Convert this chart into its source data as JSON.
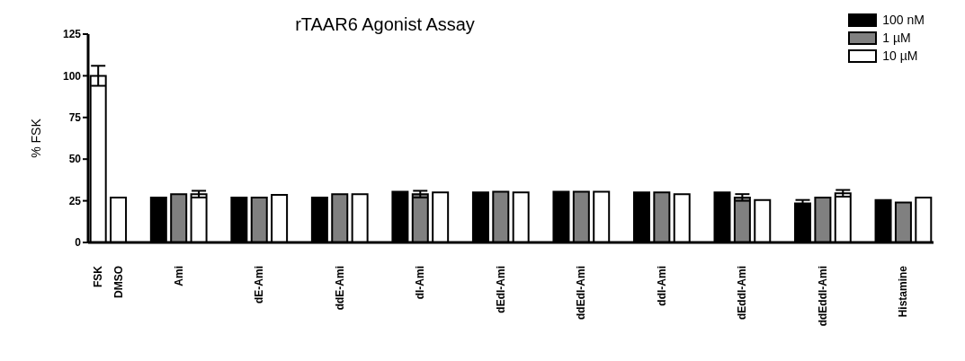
{
  "chart_data": {
    "type": "bar",
    "title": "rTAAR6 Agonist Assay",
    "ylabel": "% FSK",
    "categories": [
      "FSK",
      "DMSO",
      "Ami",
      "dE-Ami",
      "ddE-Ami",
      "dI-Ami",
      "dEdI-Ami",
      "ddEdI-Ami",
      "ddI-Ami",
      "dEddI-Ami",
      "ddEddI-Ami",
      "Histamine"
    ],
    "series": [
      {
        "color": "#ffffff",
        "values": [
          100,
          27,
          null,
          null,
          null,
          null,
          null,
          null,
          null,
          null,
          null,
          null
        ],
        "errors": [
          6,
          null,
          null,
          null,
          null,
          null,
          null,
          null,
          null,
          null,
          null,
          null
        ]
      },
      {
        "name": "100 nM",
        "color": "#000000",
        "values": [
          null,
          null,
          27,
          27,
          27,
          30.5,
          30,
          30.5,
          30,
          30,
          23.5,
          25.5
        ],
        "errors": [
          null,
          null,
          null,
          null,
          null,
          null,
          null,
          null,
          null,
          null,
          2,
          null
        ]
      },
      {
        "name": "1 µM",
        "color": "#808080",
        "values": [
          null,
          null,
          29,
          27,
          29,
          29,
          30.5,
          30.5,
          30,
          27,
          27,
          24
        ],
        "errors": [
          null,
          null,
          null,
          null,
          null,
          2,
          null,
          null,
          null,
          2,
          null,
          null
        ]
      },
      {
        "name": "10 µM",
        "color": "#ffffff",
        "values": [
          null,
          null,
          29,
          28.5,
          29,
          30,
          30,
          30.5,
          29,
          25.5,
          29.5,
          27
        ],
        "errors": [
          null,
          null,
          2,
          null,
          null,
          null,
          null,
          null,
          null,
          null,
          2,
          null
        ]
      }
    ],
    "ylim": [
      0,
      125
    ],
    "yticks": [
      0,
      25,
      50,
      75,
      100,
      125
    ],
    "legend": "top right"
  }
}
